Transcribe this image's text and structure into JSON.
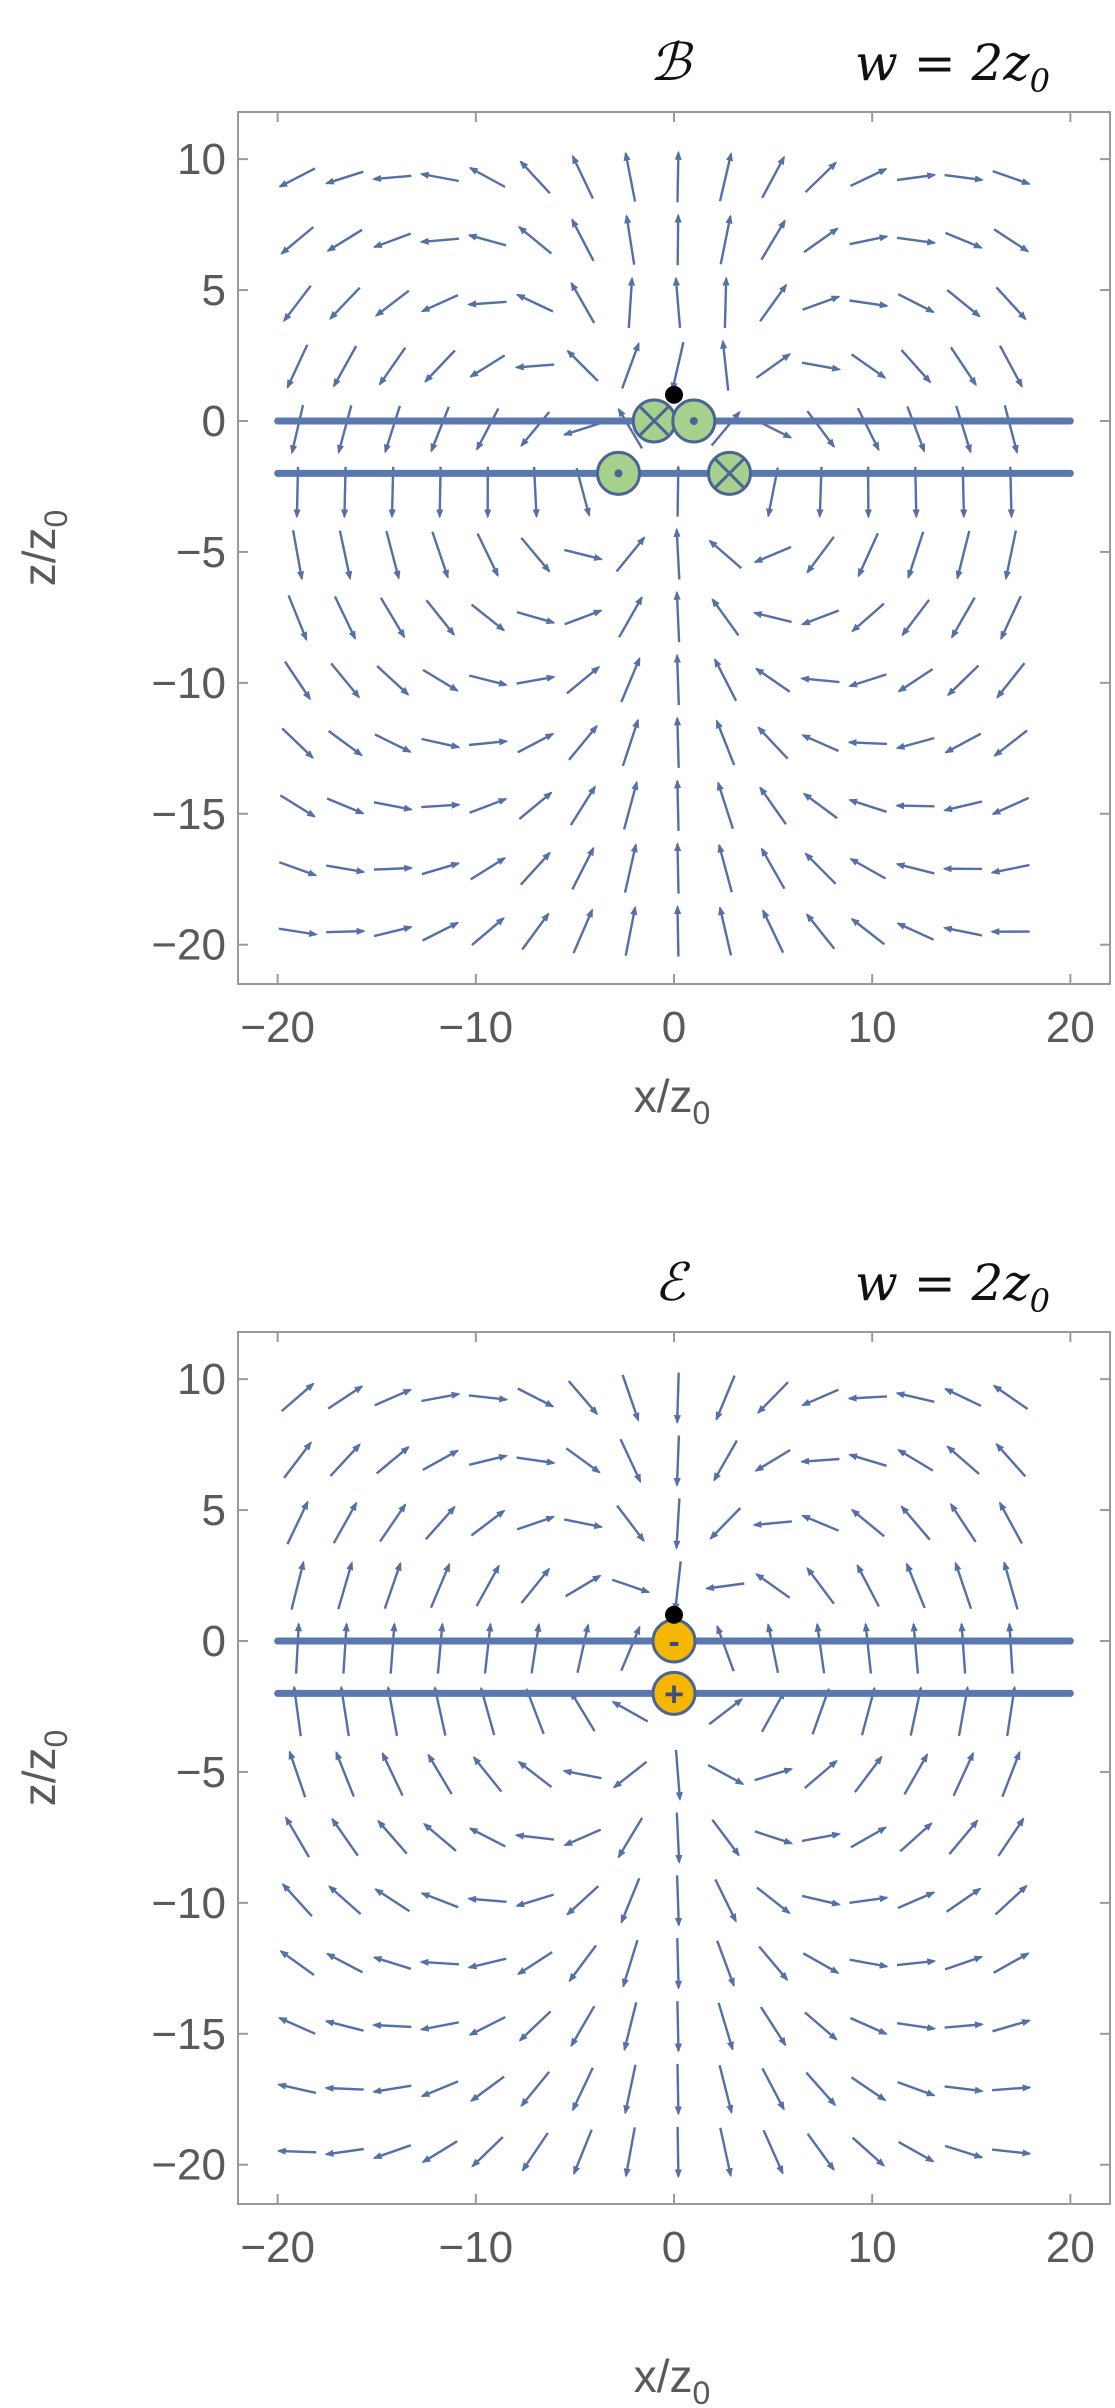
{
  "chart_data": [
    {
      "type": "streamplot",
      "field": "magnetic",
      "title": "ℬ",
      "subtitle": "w = 2z",
      "subtitle_sub": "0",
      "xlabel": "x/z",
      "xlabel_sub": "0",
      "ylabel": "z/z",
      "ylabel_sub": "0",
      "xlim": [
        -22,
        22
      ],
      "ylim": [
        -21.5,
        11.8
      ],
      "x_ticks": [
        -20,
        -10,
        0,
        10,
        20
      ],
      "x_tick_labels": [
        "−20",
        "−10",
        "0",
        "10",
        "20"
      ],
      "y_ticks": [
        10,
        5,
        0,
        -5,
        -10,
        -15,
        -20
      ],
      "y_tick_labels": [
        "10",
        "5",
        "0",
        "−5",
        "−10",
        "−15",
        "−20"
      ],
      "plates": [
        {
          "z": 0,
          "x_range": [
            -20,
            20
          ]
        },
        {
          "z": -2,
          "x_range": [
            -20,
            20
          ]
        }
      ],
      "point": {
        "x": 0,
        "z": 1
      },
      "sources": [
        {
          "x": -1,
          "z": 0,
          "symbol": "cross"
        },
        {
          "x": 1,
          "z": 0,
          "symbol": "dot"
        },
        {
          "x": -2.8,
          "z": -2,
          "symbol": "dot"
        },
        {
          "x": 2.8,
          "z": -2,
          "symbol": "cross"
        }
      ],
      "colors": {
        "stream": "#5470a6",
        "plate": "#5b77b0",
        "source_fill": "#a8d08d",
        "source_edge": "#4a6496",
        "point": "#000000"
      }
    },
    {
      "type": "streamplot",
      "field": "electric",
      "title": "ℰ",
      "subtitle": "w = 2z",
      "subtitle_sub": "0",
      "xlabel": "x/z",
      "xlabel_sub": "0",
      "ylabel": "z/z",
      "ylabel_sub": "0",
      "xlim": [
        -22,
        22
      ],
      "ylim": [
        -21.5,
        11.8
      ],
      "x_ticks": [
        -20,
        -10,
        0,
        10,
        20
      ],
      "x_tick_labels": [
        "−20",
        "−10",
        "0",
        "10",
        "20"
      ],
      "y_ticks": [
        10,
        5,
        0,
        -5,
        -10,
        -15,
        -20
      ],
      "y_tick_labels": [
        "10",
        "5",
        "0",
        "−5",
        "−10",
        "−15",
        "−20"
      ],
      "plates": [
        {
          "z": 0,
          "x_range": [
            -20,
            20
          ]
        },
        {
          "z": -2,
          "x_range": [
            -20,
            20
          ]
        }
      ],
      "point": {
        "x": 0,
        "z": 1
      },
      "sources": [
        {
          "x": 0,
          "z": 0,
          "symbol": "-"
        },
        {
          "x": 0,
          "z": -2,
          "symbol": "+"
        }
      ],
      "colors": {
        "stream": "#5470a6",
        "plate": "#5b77b0",
        "source_fill": "#f5b700",
        "source_edge": "#4a6496",
        "point": "#000000"
      }
    }
  ]
}
